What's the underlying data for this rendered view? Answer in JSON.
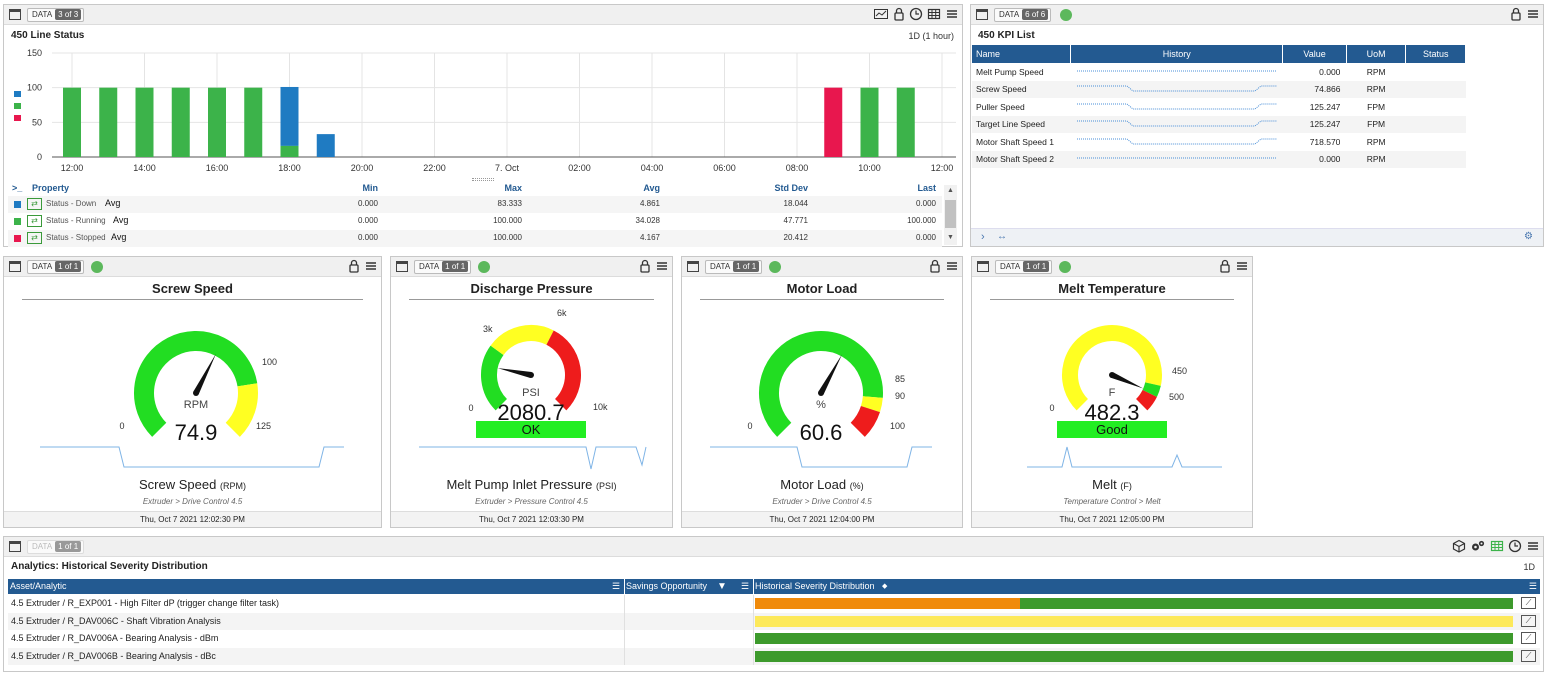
{
  "line_status": {
    "data_label": "DATA",
    "data_count": "3 of 3",
    "title": "450 Line Status",
    "range": "1D (1 hour)",
    "chart_data": {
      "type": "bar",
      "y_ticks": [
        "150",
        "100",
        "50",
        "0"
      ],
      "ylim": [
        0,
        150
      ],
      "x_ticks": [
        "12:00",
        "14:00",
        "16:00",
        "18:00",
        "20:00",
        "22:00",
        "7. Oct",
        "02:00",
        "04:00",
        "06:00",
        "08:00",
        "10:00",
        "12:00"
      ],
      "series": [
        {
          "name": "Status - Down",
          "color": "#1f7bc2",
          "points": [
            {
              "slot": 6,
              "value": 85,
              "base": 16
            },
            {
              "slot": 7,
              "value": 33,
              "base": 0
            }
          ]
        },
        {
          "name": "Status - Running",
          "color": "#3cb34a",
          "points": [
            {
              "slot": 0,
              "value": 100
            },
            {
              "slot": 1,
              "value": 100
            },
            {
              "slot": 2,
              "value": 100
            },
            {
              "slot": 3,
              "value": 100
            },
            {
              "slot": 4,
              "value": 100
            },
            {
              "slot": 5,
              "value": 100
            },
            {
              "slot": 6,
              "value": 16
            },
            {
              "slot": 22,
              "value": 100
            },
            {
              "slot": 23,
              "value": 100
            }
          ]
        },
        {
          "name": "Status - Stopped",
          "color": "#e8174e",
          "points": [
            {
              "slot": 21,
              "value": 100
            }
          ]
        }
      ]
    },
    "stats_headers": {
      "property": "Property",
      "min": "Min",
      "max": "Max",
      "avg": "Avg",
      "std": "Std Dev",
      "last": "Last"
    },
    "stats_rows": [
      {
        "color": "#1f7bc2",
        "name": "Status - Down",
        "stat": "Avg",
        "min": "0.000",
        "max": "83.333",
        "avg": "4.861",
        "std": "18.044",
        "last": "0.000"
      },
      {
        "color": "#3cb34a",
        "name": "Status - Running",
        "stat": "Avg",
        "min": "0.000",
        "max": "100.000",
        "avg": "34.028",
        "std": "47.771",
        "last": "100.000"
      },
      {
        "color": "#e8174e",
        "name": "Status - Stopped",
        "stat": "Avg",
        "min": "0.000",
        "max": "100.000",
        "avg": "4.167",
        "std": "20.412",
        "last": "0.000"
      }
    ]
  },
  "kpi": {
    "data_label": "DATA",
    "data_count": "6 of 6",
    "title": "450 KPI List",
    "headers": {
      "name": "Name",
      "history": "History",
      "value": "Value",
      "uom": "UoM",
      "status": "Status"
    },
    "rows": [
      {
        "name": "Melt Pump Speed",
        "value": "0.000",
        "uom": "RPM",
        "spark": "flat"
      },
      {
        "name": "Screw Speed",
        "value": "74.866",
        "uom": "RPM",
        "spark": "dip"
      },
      {
        "name": "Puller Speed",
        "value": "125.247",
        "uom": "FPM",
        "spark": "dip"
      },
      {
        "name": "Target Line Speed",
        "value": "125.247",
        "uom": "FPM",
        "spark": "dip"
      },
      {
        "name": "Motor Shaft Speed 1",
        "value": "718.570",
        "uom": "RPM",
        "spark": "dip"
      },
      {
        "name": "Motor Shaft Speed 2",
        "value": "0.000",
        "uom": "RPM",
        "spark": "flat"
      }
    ]
  },
  "gauges": [
    {
      "data_label": "DATA",
      "data_count": "1 of 1",
      "title": "Screw Speed",
      "unit": "RPM",
      "value": "74.9",
      "min_label": "0",
      "labels": [
        "100",
        "125"
      ],
      "name": "Screw Speed",
      "name_unit": "(RPM)",
      "path": "Extruder > Drive Control 4.5",
      "timestamp": "Thu, Oct 7 2021 12:02:30 PM"
    },
    {
      "data_label": "DATA",
      "data_count": "1 of 1",
      "title": "Discharge Pressure",
      "unit": "PSI",
      "value": "2080.7",
      "min_label": "0",
      "labels": [
        "3k",
        "6k",
        "10k"
      ],
      "status": "OK",
      "name": "Melt Pump Inlet Pressure",
      "name_unit": "(PSI)",
      "path": "Extruder > Pressure Control 4.5",
      "timestamp": "Thu, Oct 7 2021 12:03:30 PM"
    },
    {
      "data_label": "DATA",
      "data_count": "1 of 1",
      "title": "Motor Load",
      "unit": "%",
      "value": "60.6",
      "min_label": "0",
      "labels": [
        "85",
        "90",
        "100"
      ],
      "name": "Motor Load",
      "name_unit": "(%)",
      "path": "Extruder > Drive Control 4.5",
      "timestamp": "Thu, Oct 7 2021 12:04:00 PM"
    },
    {
      "data_label": "DATA",
      "data_count": "1 of 1",
      "title": "Melt Temperature",
      "unit": "F",
      "value": "482.3",
      "min_label": "0",
      "labels": [
        "450",
        "500"
      ],
      "status": "Good",
      "name": "Melt",
      "name_unit": "(F)",
      "path": "Temperature Control > Melt",
      "timestamp": "Thu, Oct 7 2021 12:05:00 PM"
    }
  ],
  "analytics": {
    "data_label": "DATA",
    "data_count": "1 of 1",
    "title": "Analytics: Historical Severity Distribution",
    "range": "1D",
    "headers": {
      "asset": "Asset/Analytic",
      "savings": "Savings Opportunity",
      "dist": "Historical Severity Distribution"
    },
    "rows": [
      {
        "asset": "4.5 Extruder / R_EXP001 - High Filter dP (trigger change filter task)",
        "segments": [
          {
            "color": "#f08a0b",
            "fraction": 0.35
          },
          {
            "color": "#3d9a2c",
            "fraction": 0.65
          }
        ]
      },
      {
        "asset": "4.5 Extruder / R_DAV006C - Shaft Vibration Analysis",
        "segments": [
          {
            "color": "#fde95a",
            "fraction": 1.0
          }
        ]
      },
      {
        "asset": "4.5 Extruder / R_DAV006A - Bearing Analysis - dBm",
        "segments": [
          {
            "color": "#3d9a2c",
            "fraction": 1.0
          }
        ]
      },
      {
        "asset": "4.5 Extruder / R_DAV006B - Bearing Analysis - dBc",
        "segments": [
          {
            "color": "#3d9a2c",
            "fraction": 1.0
          }
        ]
      }
    ]
  }
}
